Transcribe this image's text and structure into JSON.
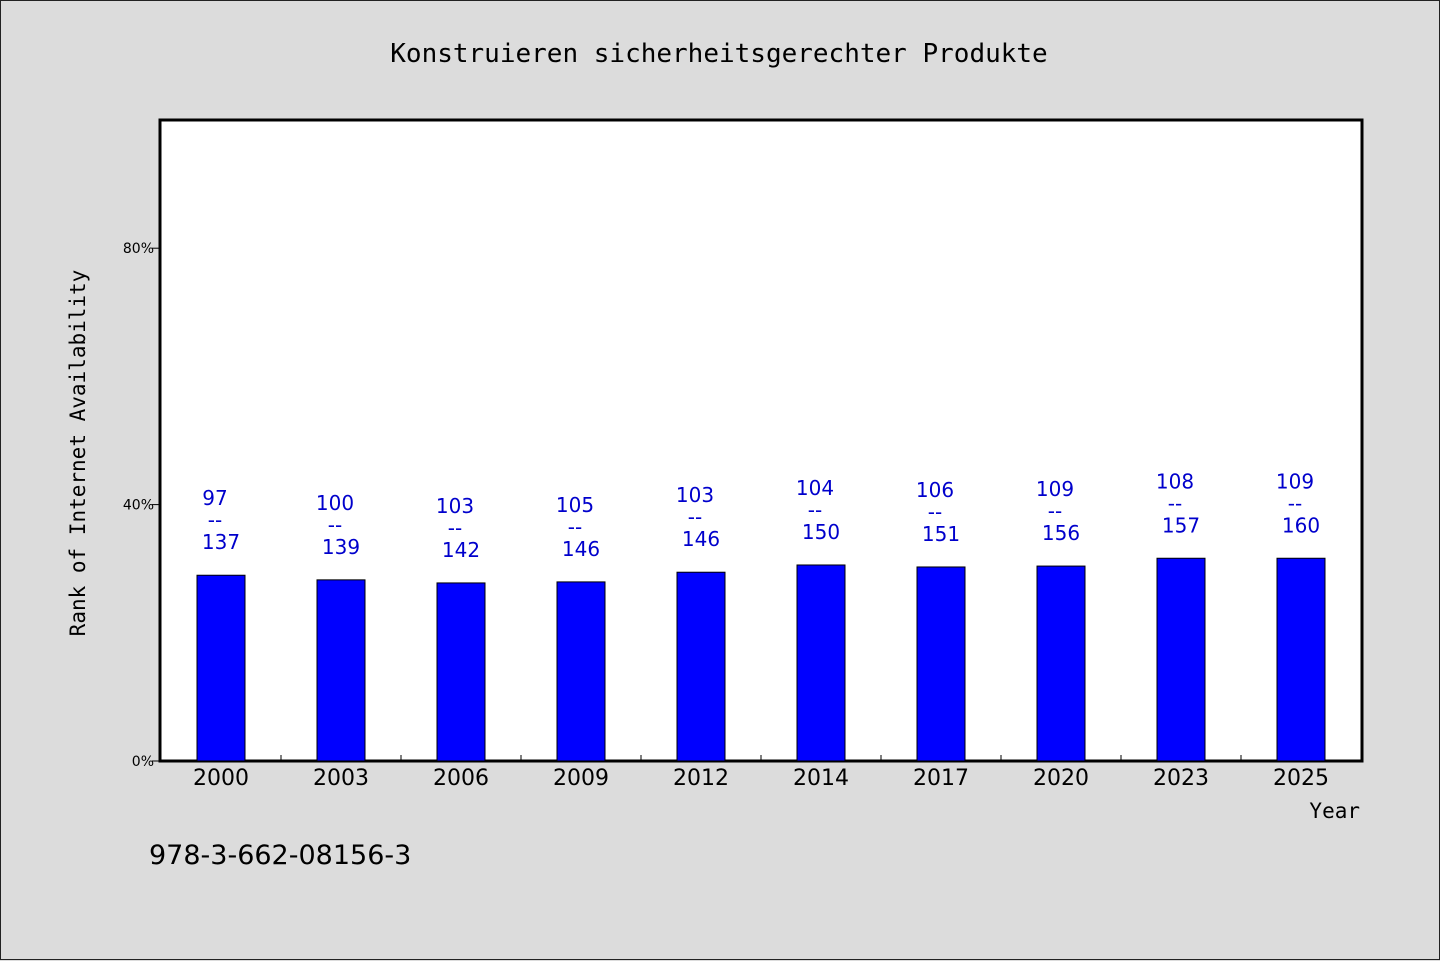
{
  "chart_data": {
    "type": "bar",
    "title": "Konstruieren sicherheitsgerechter Produkte",
    "xlabel": "Year",
    "ylabel": "Rank of Internet Availability",
    "categories": [
      "2000",
      "2003",
      "2006",
      "2009",
      "2012",
      "2014",
      "2017",
      "2020",
      "2023",
      "2025"
    ],
    "values": [
      0.2898,
      0.2826,
      0.2778,
      0.2794,
      0.2945,
      0.3058,
      0.3027,
      0.3041,
      0.3163,
      0.3163
    ],
    "labels_top": [
      "97",
      "100",
      "103",
      "105",
      "103",
      "104",
      "106",
      "109",
      "108",
      "109"
    ],
    "labels_bottom": [
      "137",
      "139",
      "142",
      "146",
      "146",
      "150",
      "151",
      "156",
      "157",
      "160"
    ],
    "label_separator": "--",
    "ylim": [
      0,
      1.0
    ],
    "yticks": [
      0,
      0.4,
      0.8
    ],
    "ytick_labels": [
      "0%",
      "40%",
      "80%"
    ],
    "grid": false,
    "bar_color": "#0000ff",
    "label_color": "#0000cc",
    "background_color": "#dcdcdc",
    "plot_background_color": "#ffffff"
  },
  "footer": {
    "isbn": "978-3-662-08156-3"
  }
}
